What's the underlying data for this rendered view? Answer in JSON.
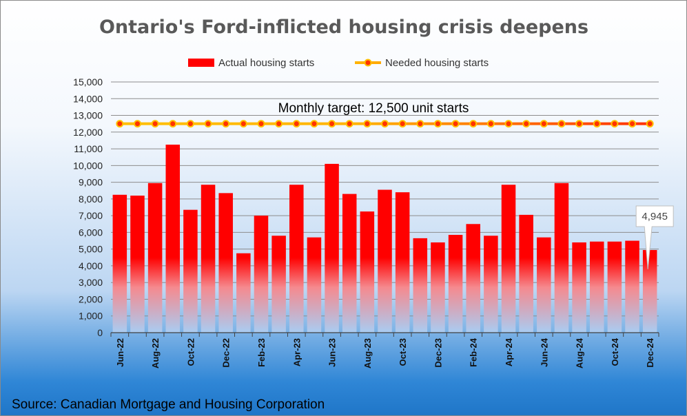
{
  "chart_data": {
    "type": "bar",
    "title": "Ontario's Ford-inflicted housing crisis deepens",
    "source": "Source: Canadian Mortgage and Housing Corporation",
    "annotation": "Monthly target: 12,500 unit starts",
    "callout": {
      "label": "4,945",
      "category": "Dec-24"
    },
    "ylim": [
      0,
      15000
    ],
    "yticks": [
      0,
      1000,
      2000,
      3000,
      4000,
      5000,
      6000,
      7000,
      8000,
      9000,
      10000,
      11000,
      12000,
      13000,
      14000,
      15000
    ],
    "ytick_labels": [
      "0",
      "1,000",
      "2,000",
      "3,000",
      "4,000",
      "5,000",
      "6,000",
      "7,000",
      "8,000",
      "9,000",
      "10,000",
      "11,000",
      "12,000",
      "13,000",
      "14,000",
      "15,000"
    ],
    "grid": true,
    "legend": "top",
    "categories": [
      "Jun-22",
      "Jul-22",
      "Aug-22",
      "Sep-22",
      "Oct-22",
      "Nov-22",
      "Dec-22",
      "Jan-23",
      "Feb-23",
      "Mar-23",
      "Apr-23",
      "May-23",
      "Jun-23",
      "Jul-23",
      "Aug-23",
      "Sep-23",
      "Oct-23",
      "Nov-23",
      "Dec-23",
      "Jan-24",
      "Feb-24",
      "Mar-24",
      "Apr-24",
      "May-24",
      "Jun-24",
      "Jul-24",
      "Aug-24",
      "Sep-24",
      "Oct-24",
      "Nov-24",
      "Dec-24"
    ],
    "x_tick_labels": [
      "Jun-22",
      "",
      "Aug-22",
      "",
      "Oct-22",
      "",
      "Dec-22",
      "",
      "Feb-23",
      "",
      "Apr-23",
      "",
      "Jun-23",
      "",
      "Aug-23",
      "",
      "Oct-23",
      "",
      "Dec-23",
      "",
      "Feb-24",
      "",
      "Apr-24",
      "",
      "Jun-24",
      "",
      "Aug-24",
      "",
      "Oct-24",
      "",
      "Dec-24"
    ],
    "series": [
      {
        "name": "Actual housing starts",
        "type": "bar",
        "color": "#ff0000",
        "values": [
          8250,
          8200,
          8950,
          11250,
          7350,
          8850,
          8350,
          4750,
          7000,
          5800,
          8850,
          5700,
          10100,
          8300,
          7250,
          8550,
          8400,
          5650,
          5400,
          5850,
          6500,
          5800,
          8850,
          7050,
          5700,
          8950,
          5400,
          5450,
          5450,
          5500,
          4945
        ]
      },
      {
        "name": "Needed housing starts",
        "type": "line",
        "color": "#ffc000",
        "marker_color": "#ff4000",
        "values": [
          12500,
          12500,
          12500,
          12500,
          12500,
          12500,
          12500,
          12500,
          12500,
          12500,
          12500,
          12500,
          12500,
          12500,
          12500,
          12500,
          12500,
          12500,
          12500,
          12500,
          12500,
          12500,
          12500,
          12500,
          12500,
          12500,
          12500,
          12500,
          12500,
          12500,
          12500
        ]
      }
    ]
  }
}
